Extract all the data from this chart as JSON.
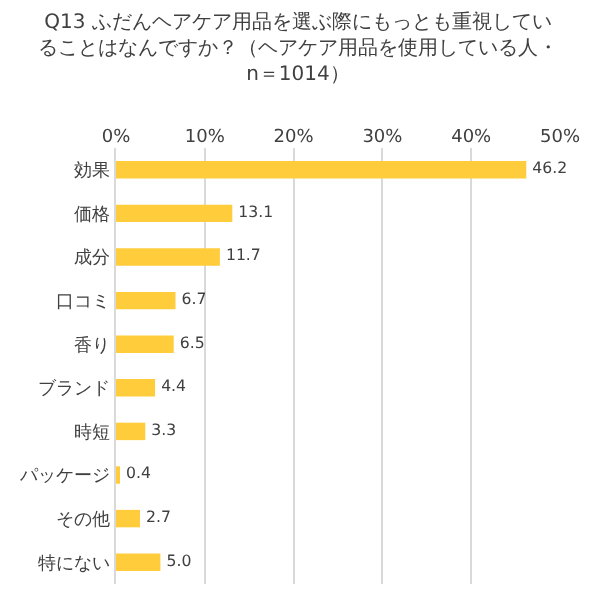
{
  "chart_data": {
    "type": "bar",
    "orientation": "horizontal",
    "title": "Q13 ふだんヘアケア用品を選ぶ際にもっとも重視していることはなんですか？（ヘアケア用品を使用している人・n＝1014）",
    "categories": [
      "効果",
      "価格",
      "成分",
      "口コミ",
      "香り",
      "ブランド",
      "時短",
      "パッケージ",
      "その他",
      "特にない"
    ],
    "values": [
      46.2,
      13.1,
      11.7,
      6.7,
      6.5,
      4.4,
      3.3,
      0.4,
      2.7,
      5.0
    ],
    "value_labels": [
      "46.2",
      "13.1",
      "11.7",
      "6.7",
      "6.5",
      "4.4",
      "3.3",
      "0.4",
      "2.7",
      "5.0"
    ],
    "color": "#ffcd3c",
    "xlim": [
      0,
      50
    ],
    "xticks": [
      {
        "value": 0,
        "label": "0%"
      },
      {
        "value": 10,
        "label": "10%"
      },
      {
        "value": 20,
        "label": "20%"
      },
      {
        "value": 30,
        "label": "30%"
      },
      {
        "value": 40,
        "label": "40%"
      },
      {
        "value": 50,
        "label": "50%"
      }
    ],
    "grid": "x",
    "legend": false
  }
}
